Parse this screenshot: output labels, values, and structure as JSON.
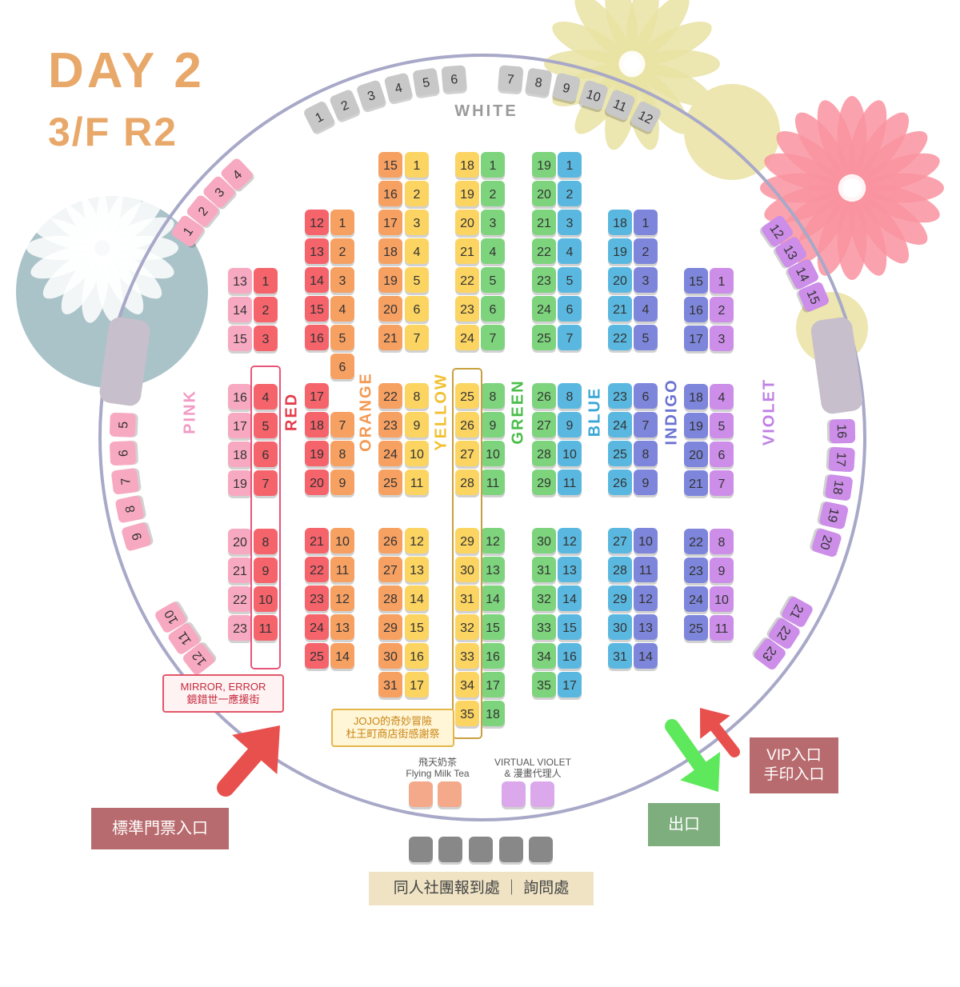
{
  "header": {
    "day": "DAY 2",
    "floor": "3/F R2"
  },
  "colors": {
    "pink": "#f8a9c2",
    "red": "#f5636b",
    "orange": "#f6a062",
    "yellow": "#fbd462",
    "green": "#7dd47d",
    "blue": "#5ab8e0",
    "indigo": "#7e86db",
    "violet": "#cc8ee8",
    "white": "#c8c8c8",
    "reg": "#888888",
    "ring": "#a8a8c8",
    "entry_arrow": "#e8504e",
    "exit_arrow": "#5ee85c"
  },
  "sections": {
    "white": "WHITE",
    "pink": "PINK",
    "red": "RED",
    "orange": "ORANGE",
    "yellow": "YELLOW",
    "green": "GREEN",
    "blue": "BLUE",
    "indigo": "INDIGO",
    "violet": "VIOLET"
  },
  "booths": {
    "white_left": [
      "1",
      "2",
      "3",
      "4",
      "5",
      "6"
    ],
    "white_right": [
      "7",
      "8",
      "9",
      "10",
      "11",
      "12"
    ],
    "pink_outer_1": [
      "1",
      "2",
      "3",
      "4"
    ],
    "pink_outer_2": [
      "5",
      "6",
      "7",
      "8",
      "9"
    ],
    "pink_outer_3": [
      "10",
      "11",
      "12"
    ],
    "violet_outer_1": [
      "12",
      "13",
      "14",
      "15"
    ],
    "violet_outer_2": [
      "16",
      "17",
      "18",
      "19",
      "20"
    ],
    "violet_outer_3": [
      "21",
      "22",
      "23"
    ],
    "pink_col": [
      "13",
      "14",
      "15",
      "",
      "16",
      "17",
      "18",
      "19",
      "",
      "20",
      "21",
      "22",
      "23"
    ],
    "red_a": [
      "1",
      "2",
      "3",
      "",
      "4",
      "5",
      "6",
      "7",
      "",
      "8",
      "9",
      "10",
      "11"
    ],
    "red_b": [
      "12",
      "13",
      "14",
      "15",
      "16",
      "",
      "17",
      "18",
      "19",
      "20",
      "",
      "21",
      "22",
      "23",
      "24",
      "25"
    ],
    "orange_a": [
      "1",
      "2",
      "3",
      "4",
      "5",
      "6",
      "",
      "7",
      "8",
      "9",
      "",
      "10",
      "11",
      "12",
      "13",
      "14"
    ],
    "orange_b": [
      "15",
      "16",
      "17",
      "18",
      "19",
      "20",
      "21",
      "",
      "22",
      "23",
      "24",
      "25",
      "",
      "26",
      "27",
      "28",
      "29",
      "30",
      "31"
    ],
    "yellow_a": [
      "1",
      "2",
      "3",
      "4",
      "5",
      "6",
      "7",
      "",
      "8",
      "9",
      "10",
      "11",
      "",
      "12",
      "13",
      "14",
      "15",
      "16",
      "17"
    ],
    "yellow_b": [
      "18",
      "19",
      "20",
      "21",
      "22",
      "23",
      "24",
      "",
      "25",
      "26",
      "27",
      "28",
      "",
      "29",
      "30",
      "31",
      "32",
      "33",
      "34",
      "35"
    ],
    "green_a": [
      "1",
      "2",
      "3",
      "4",
      "5",
      "6",
      "7",
      "",
      "8",
      "9",
      "10",
      "11",
      "",
      "12",
      "13",
      "14",
      "15",
      "16",
      "17",
      "18"
    ],
    "green_b": [
      "19",
      "20",
      "21",
      "22",
      "23",
      "24",
      "25",
      "",
      "26",
      "27",
      "28",
      "29",
      "",
      "30",
      "31",
      "32",
      "33",
      "34",
      "35"
    ],
    "blue_a": [
      "1",
      "2",
      "3",
      "4",
      "5",
      "6",
      "7",
      "",
      "8",
      "9",
      "10",
      "11",
      "",
      "12",
      "13",
      "14",
      "15",
      "16",
      "17"
    ],
    "blue_b": [
      "18",
      "19",
      "20",
      "21",
      "22",
      "",
      "23",
      "24",
      "25",
      "26",
      "",
      "27",
      "28",
      "29",
      "30",
      "31"
    ],
    "indigo_a": [
      "1",
      "2",
      "3",
      "4",
      "5",
      "",
      "6",
      "7",
      "8",
      "9",
      "",
      "10",
      "11",
      "12",
      "13",
      "14"
    ],
    "indigo_b": [
      "15",
      "16",
      "17",
      "",
      "18",
      "19",
      "20",
      "21",
      "",
      "22",
      "23",
      "24",
      "25"
    ],
    "violet_col": [
      "1",
      "2",
      "3",
      "",
      "4",
      "5",
      "6",
      "7",
      "",
      "8",
      "9",
      "10",
      "11"
    ]
  },
  "highlights": {
    "mirror_error": "MIRROR, ERROR\n鏡錯世一應援街",
    "jojo": "JOJO的奇妙冒險\n杜王町商店街感謝祭"
  },
  "special": {
    "milk_tea": "飛天奶茶\nFlying Milk Tea",
    "virtual_violet": "VIRTUAL VIOLET\n& 漫畫代理人"
  },
  "signs": {
    "standard_entry": "標準門票入口",
    "vip_entry": "VIP入口\n手印入口",
    "exit": "出口",
    "registration": "同人社團報到處 ｜ 詢問處"
  }
}
